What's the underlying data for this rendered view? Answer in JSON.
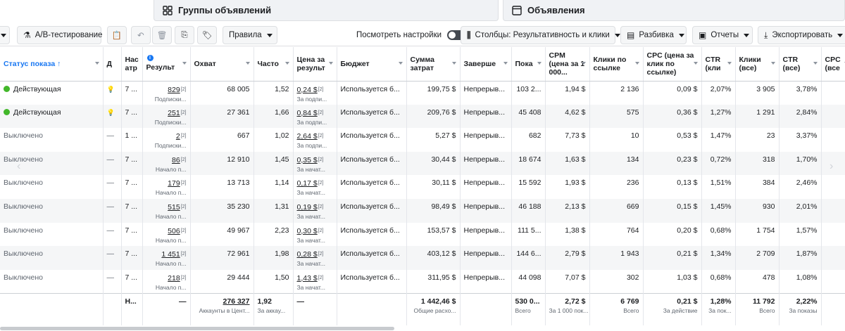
{
  "tabs": [
    {
      "label": "Группы объявлений",
      "icon": "ad-sets-icon"
    },
    {
      "label": "Объявления",
      "icon": "ads-icon"
    }
  ],
  "toolbar": {
    "ab_test": "A/B-тестирование",
    "rules": "Правила",
    "view_settings": "Посмотреть настройки",
    "columns": "Столбцы: Результативность и клики",
    "breakdown": "Разбивка",
    "reports": "Отчеты",
    "export": "Экспортировать"
  },
  "columns": [
    {
      "key": "status",
      "label": "Статус показа ↑"
    },
    {
      "key": "flag",
      "label": "Д"
    },
    {
      "key": "attr",
      "label": "Нас атр"
    },
    {
      "key": "results",
      "label": "Результ"
    },
    {
      "key": "reach",
      "label": "Охват"
    },
    {
      "key": "freq",
      "label": "Часто"
    },
    {
      "key": "cpr",
      "label": "Цена за результ"
    },
    {
      "key": "budget",
      "label": "Бюджет"
    },
    {
      "key": "spend",
      "label": "Сумма затрат"
    },
    {
      "key": "ends",
      "label": "Заверше"
    },
    {
      "key": "impr",
      "label": "Пока"
    },
    {
      "key": "cpm",
      "label": "CPM (цена за 1 000..."
    },
    {
      "key": "link_clicks",
      "label": "Клики по ссылке"
    },
    {
      "key": "cpc_link",
      "label": "CPC (цена за клик по ссылке)"
    },
    {
      "key": "ctr_link",
      "label": "CTR (кли"
    },
    {
      "key": "clicks_all",
      "label": "Клики (все)"
    },
    {
      "key": "ctr_all",
      "label": "CTR (все)"
    },
    {
      "key": "cpc_all",
      "label": "CPC (все"
    }
  ],
  "rows": [
    {
      "status": "Действующая",
      "active": true,
      "flag": "💡",
      "attr": "7 ...",
      "results": "829",
      "results_sub": "Подписки...",
      "reach": "68 005",
      "freq": "1,52",
      "cpr": "0,24 $",
      "cpr_sub": "За подпи...",
      "budget": "Используется б...",
      "spend": "199,75 $",
      "ends": "Непрерыв...",
      "impr": "103 2...",
      "cpm": "1,94 $",
      "link_clicks": "2 136",
      "cpc_link": "0,09 $",
      "ctr_link": "2,07%",
      "clicks_all": "3 905",
      "ctr_all": "3,78%"
    },
    {
      "status": "Действующая",
      "active": true,
      "flag": "💡",
      "attr": "7 ...",
      "results": "251",
      "results_sub": "Подписки...",
      "reach": "27 361",
      "freq": "1,66",
      "cpr": "0,84 $",
      "cpr_sub": "За подпи...",
      "budget": "Используется б...",
      "spend": "209,76 $",
      "ends": "Непрерыв...",
      "impr": "45 408",
      "cpm": "4,62 $",
      "link_clicks": "575",
      "cpc_link": "0,36 $",
      "ctr_link": "1,27%",
      "clicks_all": "1 291",
      "ctr_all": "2,84%"
    },
    {
      "status": "Выключено",
      "active": false,
      "flag": "—",
      "attr": "1 ...",
      "results": "2",
      "results_sub": "Подписки...",
      "reach": "667",
      "freq": "1,02",
      "cpr": "2,64 $",
      "cpr_sub": "За подпи...",
      "budget": "Используется б...",
      "spend": "5,27 $",
      "ends": "Непрерыв...",
      "impr": "682",
      "cpm": "7,73 $",
      "link_clicks": "10",
      "cpc_link": "0,53 $",
      "ctr_link": "1,47%",
      "clicks_all": "23",
      "ctr_all": "3,37%"
    },
    {
      "status": "Выключено",
      "active": false,
      "flag": "—",
      "attr": "7 ...",
      "results": "86",
      "results_sub": "Начало п...",
      "reach": "12 910",
      "freq": "1,45",
      "cpr": "0,35 $",
      "cpr_sub": "За начат...",
      "budget": "Используется б...",
      "spend": "30,44 $",
      "ends": "Непрерыв...",
      "impr": "18 674",
      "cpm": "1,63 $",
      "link_clicks": "134",
      "cpc_link": "0,23 $",
      "ctr_link": "0,72%",
      "clicks_all": "318",
      "ctr_all": "1,70%"
    },
    {
      "status": "Выключено",
      "active": false,
      "flag": "—",
      "attr": "7 ...",
      "results": "179",
      "results_sub": "Начало п...",
      "reach": "13 713",
      "freq": "1,14",
      "cpr": "0,17 $",
      "cpr_sub": "За начат...",
      "budget": "Используется б...",
      "spend": "30,11 $",
      "ends": "Непрерыв...",
      "impr": "15 592",
      "cpm": "1,93 $",
      "link_clicks": "236",
      "cpc_link": "0,13 $",
      "ctr_link": "1,51%",
      "clicks_all": "384",
      "ctr_all": "2,46%"
    },
    {
      "status": "Выключено",
      "active": false,
      "flag": "—",
      "attr": "7 ...",
      "results": "515",
      "results_sub": "Начало п...",
      "reach": "35 230",
      "freq": "1,31",
      "cpr": "0,19 $",
      "cpr_sub": "За начат...",
      "budget": "Используется б...",
      "spend": "98,49 $",
      "ends": "Непрерыв...",
      "impr": "46 188",
      "cpm": "2,13 $",
      "link_clicks": "669",
      "cpc_link": "0,15 $",
      "ctr_link": "1,45%",
      "clicks_all": "930",
      "ctr_all": "2,01%"
    },
    {
      "status": "Выключено",
      "active": false,
      "flag": "—",
      "attr": "7 ...",
      "results": "506",
      "results_sub": "Начало п...",
      "reach": "49 967",
      "freq": "2,23",
      "cpr": "0,30 $",
      "cpr_sub": "За начат...",
      "budget": "Используется б...",
      "spend": "153,57 $",
      "ends": "Непрерыв...",
      "impr": "111 5...",
      "cpm": "1,38 $",
      "link_clicks": "764",
      "cpc_link": "0,20 $",
      "ctr_link": "0,68%",
      "clicks_all": "1 754",
      "ctr_all": "1,57%"
    },
    {
      "status": "Выключено",
      "active": false,
      "flag": "—",
      "attr": "7 ...",
      "results": "1 451",
      "results_sub": "Начало п...",
      "reach": "72 961",
      "freq": "1,98",
      "cpr": "0,28 $",
      "cpr_sub": "За начат...",
      "budget": "Используется б...",
      "spend": "403,12 $",
      "ends": "Непрерыв...",
      "impr": "144 6...",
      "cpm": "2,79 $",
      "link_clicks": "1 943",
      "cpc_link": "0,21 $",
      "ctr_link": "1,34%",
      "clicks_all": "2 709",
      "ctr_all": "1,87%"
    },
    {
      "status": "Выключено",
      "active": false,
      "flag": "—",
      "attr": "7 ...",
      "results": "218",
      "results_sub": "Начало п...",
      "reach": "29 444",
      "freq": "1,50",
      "cpr": "1,43 $",
      "cpr_sub": "За начат...",
      "budget": "Используется б...",
      "spend": "311,95 $",
      "ends": "Непрерыв...",
      "impr": "44 098",
      "cpm": "7,07 $",
      "link_clicks": "302",
      "cpc_link": "1,03 $",
      "ctr_link": "0,68%",
      "clicks_all": "478",
      "ctr_all": "1,08%"
    }
  ],
  "totals": {
    "attr": "Н...",
    "results": "—",
    "reach": "276 327",
    "reach_sub": "Аккаунты в Цент...",
    "freq": "1,92",
    "freq_sub": "За аккау...",
    "cpr": "—",
    "spend": "1 442,46 $",
    "spend_sub": "Общие расхо...",
    "impr": "530 0...",
    "impr_sub": "Всего",
    "cpm": "2,72 $",
    "cpm_sub": "За 1 000 пок...",
    "link_clicks": "6 769",
    "link_clicks_sub": "Всего",
    "cpc_link": "0,21 $",
    "cpc_link_sub": "За действие",
    "ctr_link": "1,28%",
    "ctr_link_sub": "За пок...",
    "clicks_all": "11 792",
    "clicks_all_sub": "Всего",
    "ctr_all": "2,22%",
    "ctr_all_sub": "За показы"
  },
  "superscript": "[2]",
  "colors": {
    "active_green": "#42b72a",
    "link_blue": "#1877f2"
  }
}
